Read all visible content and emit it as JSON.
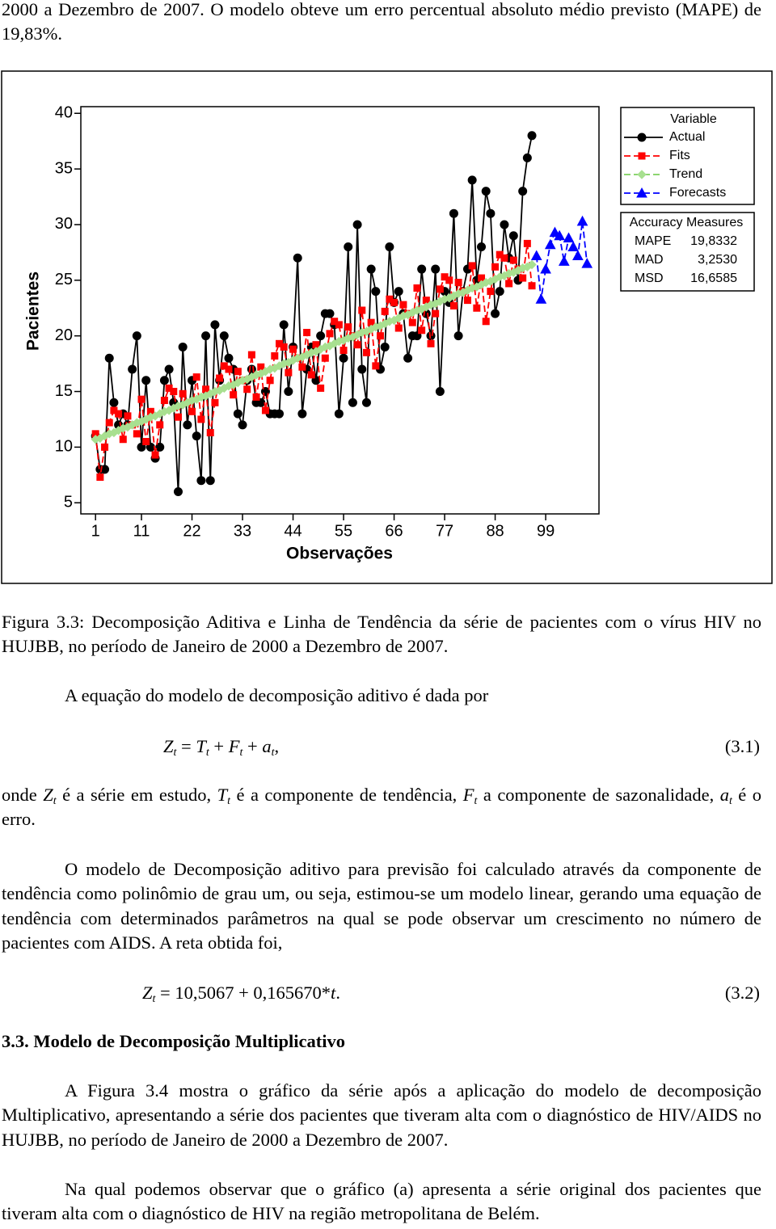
{
  "intro": "2000 a Dezembro de 2007. O modelo obteve um erro percentual absoluto médio previsto (MAPE) de 19,83%.",
  "chart_data": {
    "type": "line",
    "xlabel": "Observações",
    "ylabel": "Pacientes",
    "x": [
      1,
      2,
      3,
      4,
      5,
      6,
      7,
      8,
      9,
      10,
      11,
      12,
      13,
      14,
      15,
      16,
      17,
      18,
      19,
      20,
      21,
      22,
      23,
      24,
      25,
      26,
      27,
      28,
      29,
      30,
      31,
      32,
      33,
      34,
      35,
      36,
      37,
      38,
      39,
      40,
      41,
      42,
      43,
      44,
      45,
      46,
      47,
      48,
      49,
      50,
      51,
      52,
      53,
      54,
      55,
      56,
      57,
      58,
      59,
      60,
      61,
      62,
      63,
      64,
      65,
      66,
      67,
      68,
      69,
      70,
      71,
      72,
      73,
      74,
      75,
      76,
      77,
      78,
      79,
      80,
      81,
      82,
      83,
      84,
      85,
      86,
      87,
      88,
      89,
      90,
      91,
      92,
      93,
      94,
      95,
      96
    ],
    "xlim": [
      -2.2,
      110.6
    ],
    "xticks": [
      1,
      11,
      22,
      33,
      44,
      55,
      66,
      77,
      88,
      99
    ],
    "ylim": [
      4,
      40.6
    ],
    "yticks": [
      5,
      10,
      15,
      20,
      25,
      30,
      35,
      40
    ],
    "legend_title": "Variable",
    "series": [
      {
        "name": "Actual",
        "color": "#000000",
        "marker": "circle",
        "dashed": false,
        "values": [
          11,
          8,
          8,
          18,
          14,
          12,
          13,
          12,
          17,
          20,
          10,
          16,
          10,
          9,
          10,
          16,
          17,
          14,
          6,
          19,
          12,
          16,
          11,
          7,
          20,
          7,
          21,
          16,
          20,
          18,
          17,
          13,
          12,
          16,
          17,
          14,
          14,
          15,
          13,
          13,
          13,
          21,
          15,
          19,
          27,
          13,
          17,
          19,
          16,
          20,
          22,
          22,
          21,
          13,
          18,
          28,
          14,
          30,
          17,
          14,
          26,
          24,
          17,
          19,
          28,
          23,
          24,
          22,
          18,
          20,
          20,
          26,
          22,
          20,
          26,
          15,
          24,
          23,
          31,
          20,
          24,
          26,
          34,
          25,
          28,
          33,
          31,
          22,
          24,
          30,
          27,
          29,
          25,
          33,
          36,
          38
        ]
      },
      {
        "name": "Fits",
        "color": "#ff0000",
        "marker": "square",
        "dashed": true,
        "values": [
          11.2,
          7.3,
          10.0,
          12.2,
          13.3,
          13.0,
          10.7,
          12.8,
          12.0,
          11.2,
          14.3,
          10.5,
          13.2,
          9.3,
          12.0,
          14.2,
          15.3,
          15.0,
          12.7,
          14.8,
          14.0,
          13.2,
          16.3,
          12.5,
          15.2,
          11.3,
          14.0,
          16.2,
          17.3,
          17.0,
          14.7,
          16.8,
          16.0,
          15.2,
          18.3,
          14.5,
          17.2,
          13.3,
          16.0,
          18.2,
          19.3,
          19.0,
          16.7,
          18.8,
          18.0,
          17.2,
          20.3,
          16.5,
          19.2,
          15.3,
          18.0,
          20.2,
          21.3,
          21.0,
          18.7,
          20.8,
          20.0,
          19.2,
          22.3,
          18.5,
          21.2,
          17.3,
          20.0,
          22.2,
          23.3,
          23.0,
          20.7,
          22.8,
          22.0,
          21.2,
          24.3,
          20.5,
          23.2,
          19.3,
          22.0,
          24.2,
          25.3,
          25.0,
          22.7,
          24.8,
          24.0,
          23.2,
          26.3,
          22.5,
          25.2,
          21.3,
          24.0,
          26.2,
          27.3,
          27.0,
          24.7,
          26.8,
          26.0,
          25.2,
          28.3,
          24.5
        ]
      },
      {
        "name": "Trend",
        "color": "#7ccf5c",
        "marker": "diamond",
        "dashed": true,
        "values": [
          10.7,
          10.8,
          11.0,
          11.2,
          11.3,
          11.5,
          11.7,
          11.8,
          12.0,
          12.2,
          12.3,
          12.5,
          12.7,
          12.8,
          13.0,
          13.2,
          13.3,
          13.5,
          13.7,
          13.8,
          14.0,
          14.2,
          14.3,
          14.5,
          14.6,
          14.8,
          15.0,
          15.1,
          15.3,
          15.5,
          15.6,
          15.8,
          16.0,
          16.1,
          16.3,
          16.5,
          16.6,
          16.8,
          17.0,
          17.1,
          17.3,
          17.5,
          17.6,
          17.8,
          18.0,
          18.1,
          18.3,
          18.5,
          18.6,
          18.8,
          19.0,
          19.1,
          19.3,
          19.5,
          19.6,
          19.8,
          19.9,
          20.1,
          20.3,
          20.4,
          20.6,
          20.8,
          20.9,
          21.1,
          21.3,
          21.4,
          21.6,
          21.8,
          21.9,
          22.1,
          22.3,
          22.4,
          22.6,
          22.8,
          22.9,
          23.1,
          23.3,
          23.4,
          23.6,
          23.8,
          23.9,
          24.1,
          24.3,
          24.4,
          24.6,
          24.8,
          24.9,
          25.1,
          25.3,
          25.4,
          25.6,
          25.7,
          25.9,
          26.1,
          26.2,
          26.4
        ]
      },
      {
        "name": "Forecasts",
        "color": "#0000ff",
        "marker": "triangle",
        "dashed": true,
        "x": [
          97,
          98,
          99,
          100,
          101,
          102,
          103,
          104,
          105,
          106,
          107,
          108
        ],
        "values": [
          27.2,
          23.3,
          26.0,
          28.2,
          29.3,
          29.0,
          26.7,
          28.8,
          28.0,
          27.2,
          30.3,
          26.5
        ]
      }
    ],
    "accuracy_title": "Accuracy Measures",
    "accuracy": [
      {
        "label": "MAPE",
        "value": "19,8332"
      },
      {
        "label": "MAD",
        "value": "3,2530"
      },
      {
        "label": "MSD",
        "value": "16,6585"
      }
    ]
  },
  "figure_caption": "Figura 3.3: Decomposição Aditiva e Linha de Tendência da série de pacientes com o vírus HIV no HUJBB, no período de Janeiro de 2000 a Dezembro de 2007.",
  "paragraph_1": "A equação do modelo de decomposição aditivo é dada por",
  "equation_1": {
    "parts": [
      "Z",
      "t",
      " = ",
      "T",
      "t",
      " + ",
      "F",
      "t",
      " + ",
      "a",
      "t",
      ","
    ],
    "number": "(3.1)"
  },
  "paragraph_2": {
    "parts": [
      "onde ",
      "Z",
      "t",
      " é a série em estudo, ",
      "T",
      "t",
      " é a componente de tendência, ",
      "F",
      "t",
      " a componente de sazonalidade, ",
      "a",
      "t",
      " é o erro."
    ]
  },
  "paragraph_3": "O modelo de Decomposição aditivo para previsão foi calculado através da componente de tendência como polinômio de grau um, ou seja, estimou-se um modelo linear, gerando uma  equação de tendência com determinados parâmetros na qual se pode observar um crescimento no número de pacientes com AIDS. A reta obtida foi,",
  "equation_2": {
    "parts": [
      "Z",
      "t",
      " = 10,5067 + 0,165670*",
      "t",
      "."
    ],
    "number": "(3.2)"
  },
  "section_heading": "3.3. Modelo de Decomposição Multiplicativo",
  "paragraph_4": "A Figura 3.4 mostra o gráfico da série após a aplicação do modelo de decomposição Multiplicativo, apresentando a série dos pacientes que tiveram alta com o diagnóstico de HIV/AIDS no HUJBB, no período de Janeiro de 2000 a Dezembro de 2007.",
  "paragraph_5": "Na qual podemos observar que o gráfico (a) apresenta a série original dos pacientes que tiveram alta com o diagnóstico de HIV na região metropolitana de Belém."
}
